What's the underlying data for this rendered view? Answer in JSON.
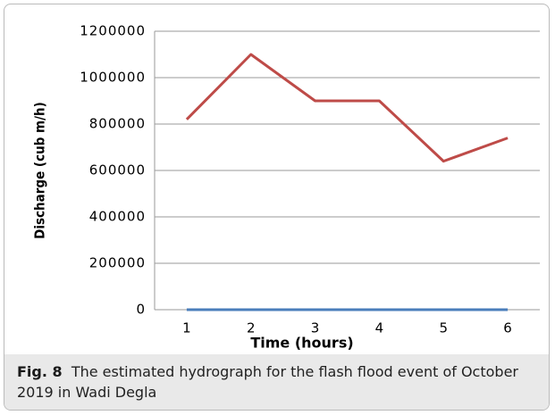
{
  "chart_data": {
    "type": "line",
    "x_label": "Time (hours)",
    "y_label": "Discharge (cub m/h)",
    "categories": [
      "1",
      "2",
      "3",
      "4",
      "5",
      "6"
    ],
    "series": [
      {
        "color": "#be4b48",
        "values": [
          820000,
          1100000,
          900000,
          900000,
          640000,
          740000
        ]
      },
      {
        "color": "#4a7ebb",
        "values": [
          0,
          0,
          0,
          0,
          0,
          0
        ]
      }
    ],
    "ylim": [
      0,
      1200000
    ],
    "yticks": [
      0,
      200000,
      400000,
      600000,
      800000,
      1000000,
      1200000
    ],
    "grid": true,
    "caption": {
      "label": "Fig. 8",
      "text": "The estimated hydrograph for the flash flood event of October 2019 in Wadi Degla"
    }
  }
}
